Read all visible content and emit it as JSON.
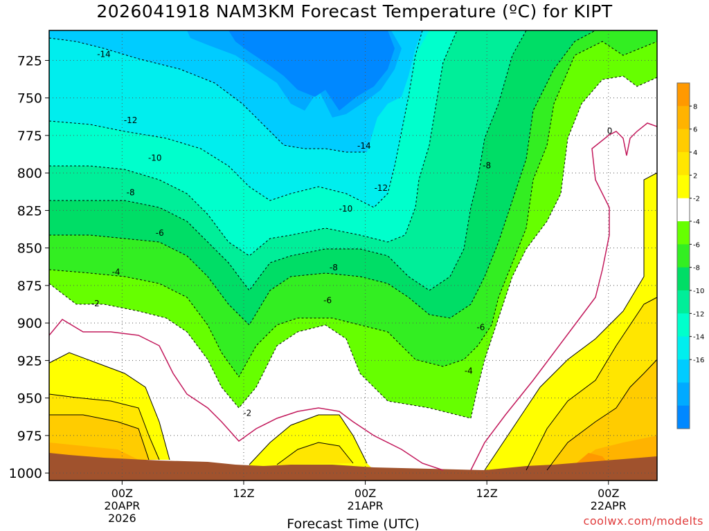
{
  "title": "2026041918 NAM3KM Forecast Temperature (ºC) for KIPT",
  "credit": "coolwx.com/modelts",
  "chart_data": {
    "type": "heatmap",
    "title": "2026041918 NAM3KM Forecast Temperature (ºC) for KIPT",
    "xlabel": "Forecast Time (UTC)",
    "ylabel": "",
    "y_axis": {
      "reversed": true,
      "ticks": [
        725,
        750,
        775,
        800,
        825,
        850,
        875,
        900,
        925,
        950,
        975,
        1000
      ],
      "tick_labels": [
        "725",
        "750",
        "775",
        "800",
        "825",
        "850",
        "875",
        "900",
        "925",
        "950",
        "975",
        "1000"
      ],
      "range": [
        705,
        1005
      ]
    },
    "x_axis": {
      "range_hours": [
        -6,
        44
      ],
      "ticks": [
        {
          "hour": 0,
          "lines": [
            "00Z",
            "20APR",
            "2026"
          ]
        },
        {
          "hour": 10,
          "lines": [
            "12Z"
          ]
        },
        {
          "hour": 20,
          "lines": [
            "00Z",
            "21APR"
          ]
        },
        {
          "hour": 30,
          "lines": [
            "12Z"
          ]
        },
        {
          "hour": 40,
          "lines": [
            "00Z",
            "22APR"
          ]
        }
      ]
    },
    "grid": true,
    "colorbar": {
      "position": "right",
      "levels": [
        -18,
        -16,
        -14,
        -12,
        -10,
        -8,
        -6,
        -4,
        -2,
        2,
        4,
        6,
        8,
        10
      ],
      "labels": [
        "8",
        "6",
        "4",
        "2",
        "-2",
        "-4",
        "-6",
        "-8",
        "-10",
        "-12",
        "-14",
        "-16"
      ],
      "colors_top_to_bottom": [
        "#ff9900",
        "#ffb300",
        "#ffcc00",
        "#ffe600",
        "#ffff00",
        "#ffffff",
        "#66ff00",
        "#33ee22",
        "#00dd66",
        "#00ee99",
        "#00ffcc",
        "#00eeee",
        "#00ccff",
        "#00aaff",
        "#0088ff"
      ]
    },
    "contour_labels": [
      {
        "value": "-14",
        "x_hour": -1.5,
        "p": 721
      },
      {
        "value": "-12",
        "x_hour": 0.7,
        "p": 765
      },
      {
        "value": "-10",
        "x_hour": 2.7,
        "p": 790
      },
      {
        "value": "-8",
        "x_hour": 0.7,
        "p": 813
      },
      {
        "value": "-6",
        "x_hour": 3.1,
        "p": 840
      },
      {
        "value": "-4",
        "x_hour": -0.5,
        "p": 866
      },
      {
        "value": "-2",
        "x_hour": -2.2,
        "p": 887
      },
      {
        "value": "-2",
        "x_hour": 10.3,
        "p": 960
      },
      {
        "value": "-14",
        "x_hour": 19.9,
        "p": 782
      },
      {
        "value": "-12",
        "x_hour": 21.3,
        "p": 810
      },
      {
        "value": "-10",
        "x_hour": 18.4,
        "p": 824
      },
      {
        "value": "-8",
        "x_hour": 17.4,
        "p": 863
      },
      {
        "value": "-6",
        "x_hour": 16.9,
        "p": 885
      },
      {
        "value": "-8",
        "x_hour": 30.0,
        "p": 795
      },
      {
        "value": "-6",
        "x_hour": 29.5,
        "p": 903
      },
      {
        "value": "-4",
        "x_hour": 28.5,
        "p": 932
      },
      {
        "value": "0",
        "x_hour": 40.1,
        "p": 772
      }
    ]
  }
}
